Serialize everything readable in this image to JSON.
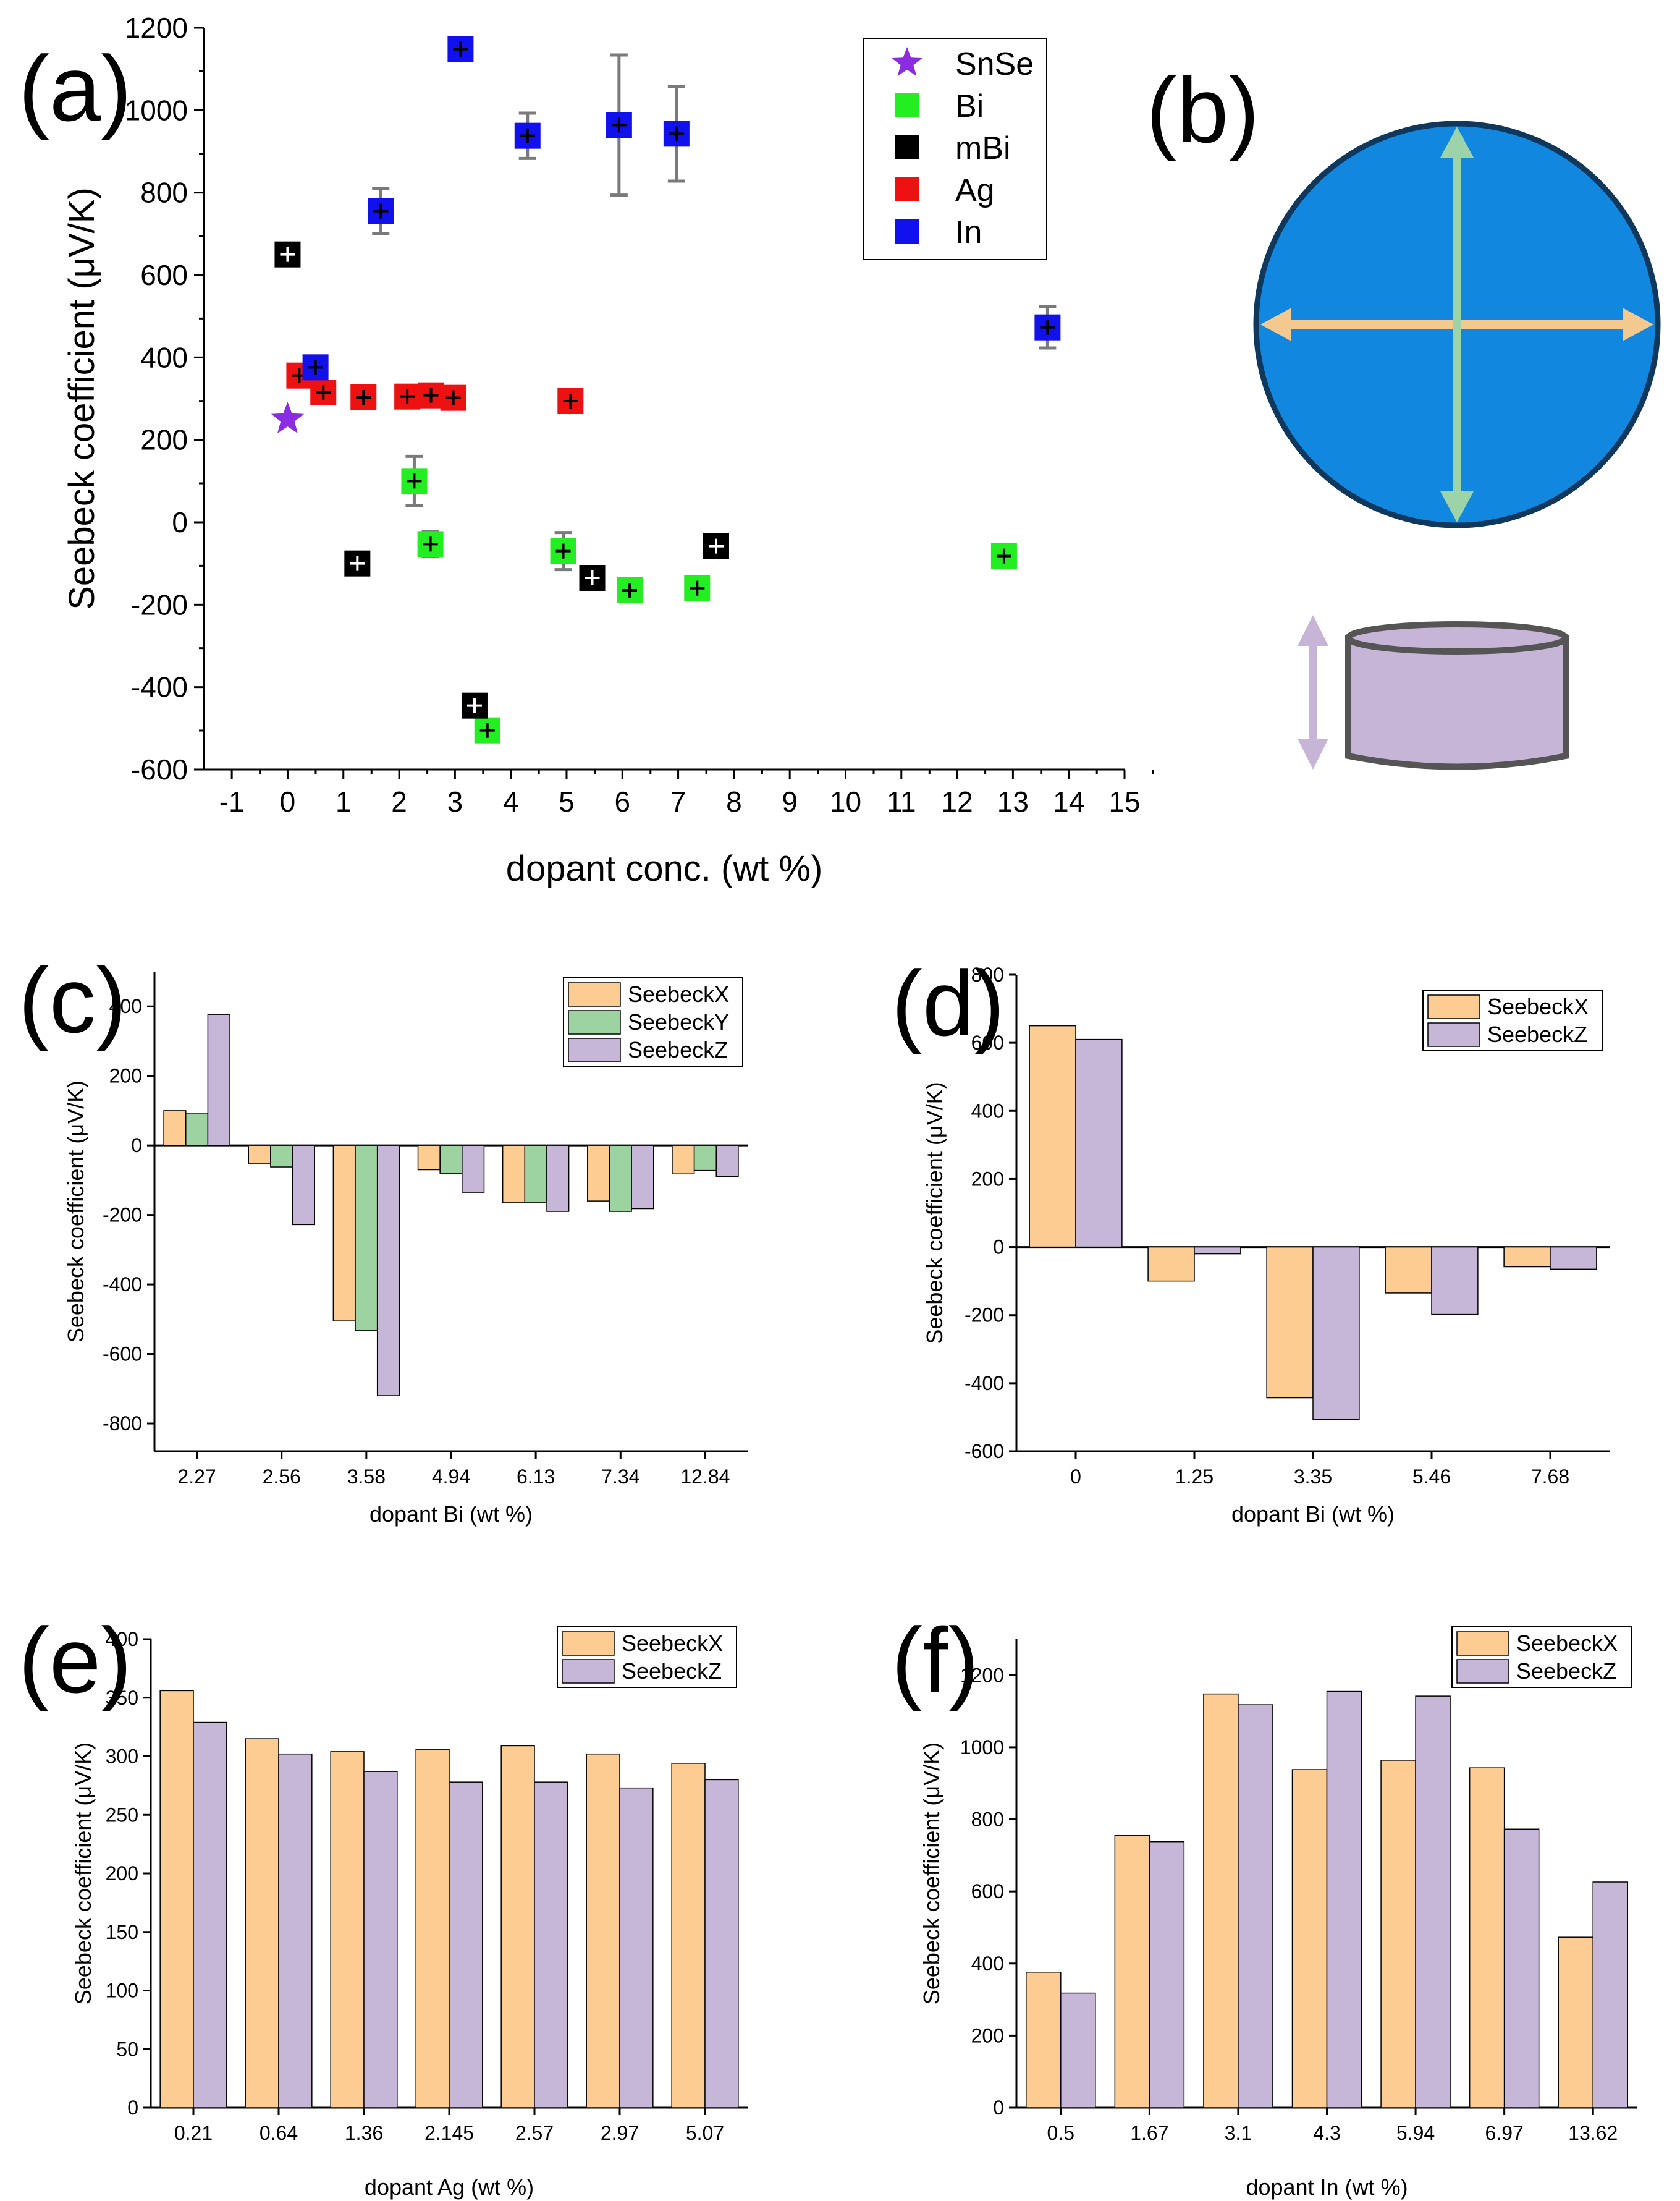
{
  "panel_labels": {
    "a": "(a)",
    "b": "(b)",
    "c": "(c)",
    "d": "(d)",
    "e": "(e)",
    "f": "(f)"
  },
  "colors": {
    "SnSe": "#8b2be2",
    "Bi": "#22ee22",
    "mBi": "#000000",
    "Ag": "#ee1111",
    "In": "#1111ee",
    "SeebeckX": "#fdcc93",
    "SeebeckY": "#9dd3a0",
    "SeebeckZ": "#c6b6d8",
    "errorbar": "#7a7a7a",
    "disk": "#1187e0",
    "disk_edge": "#10385c",
    "arrow_tan": "#f4c98f",
    "arrow_green": "#9dd3a8",
    "cylinder": "#c7b5d8",
    "cylinder_edge": "#555555"
  },
  "chart_data": [
    {
      "panel": "a",
      "type": "scatter",
      "xlabel": "dopant conc. (wt %)",
      "ylabel": "Seebeck coefficient (μV/K)",
      "xlim": [
        -1.5,
        15
      ],
      "ylim": [
        -600,
        1200
      ],
      "xticks": [
        "-1",
        "0",
        "1",
        "2",
        "3",
        "4",
        "5",
        "6",
        "7",
        "8",
        "9",
        "10",
        "11",
        "12",
        "13",
        "14",
        "15"
      ],
      "yticks": [
        "-600",
        "-400",
        "-200",
        "0",
        "200",
        "400",
        "600",
        "800",
        "1000",
        "1200"
      ],
      "legend_position": "top-right",
      "series": [
        {
          "name": "SnSe",
          "marker": "star",
          "points": [
            {
              "x": 0,
              "y": 250,
              "err": 0
            }
          ]
        },
        {
          "name": "Bi",
          "marker": "square",
          "points": [
            {
              "x": 2.27,
              "y": 100,
              "err": 60
            },
            {
              "x": 2.56,
              "y": -53,
              "err": 30
            },
            {
              "x": 3.58,
              "y": -505,
              "err": 15
            },
            {
              "x": 4.94,
              "y": -70,
              "err": 45
            },
            {
              "x": 6.13,
              "y": -165,
              "err": 15
            },
            {
              "x": 7.34,
              "y": -160,
              "err": 20
            },
            {
              "x": 12.84,
              "y": -82,
              "err": 20
            }
          ]
        },
        {
          "name": "mBi",
          "marker": "square",
          "points": [
            {
              "x": 0,
              "y": 650,
              "err": 20
            },
            {
              "x": 1.25,
              "y": -100,
              "err": 20
            },
            {
              "x": 3.35,
              "y": -445,
              "err": 15
            },
            {
              "x": 5.46,
              "y": -135,
              "err": 15
            },
            {
              "x": 7.68,
              "y": -58,
              "err": 15
            }
          ]
        },
        {
          "name": "Ag",
          "marker": "square",
          "points": [
            {
              "x": 0.21,
              "y": 356,
              "err": 15
            },
            {
              "x": 0.64,
              "y": 315,
              "err": 15
            },
            {
              "x": 1.36,
              "y": 303,
              "err": 15
            },
            {
              "x": 2.145,
              "y": 305,
              "err": 15
            },
            {
              "x": 2.57,
              "y": 308,
              "err": 15
            },
            {
              "x": 2.97,
              "y": 302,
              "err": 15
            },
            {
              "x": 5.07,
              "y": 294,
              "err": 15
            }
          ]
        },
        {
          "name": "In",
          "marker": "square",
          "points": [
            {
              "x": 0.5,
              "y": 376,
              "err": 25
            },
            {
              "x": 1.67,
              "y": 755,
              "err": 55
            },
            {
              "x": 3.1,
              "y": 1148,
              "err": 25
            },
            {
              "x": 4.3,
              "y": 938,
              "err": 55
            },
            {
              "x": 5.94,
              "y": 964,
              "err": 170
            },
            {
              "x": 6.97,
              "y": 943,
              "err": 115
            },
            {
              "x": 13.62,
              "y": 473,
              "err": 50
            }
          ]
        }
      ]
    },
    {
      "panel": "c",
      "type": "bar",
      "xlabel": "dopant Bi (wt %)",
      "ylabel": "Seebeck coefficient (μV/K)",
      "ylim": [
        -880,
        500
      ],
      "yticks": [
        "-800",
        "-600",
        "-400",
        "-200",
        "0",
        "200",
        "400"
      ],
      "categories": [
        "2.27",
        "2.56",
        "3.58",
        "4.94",
        "6.13",
        "7.34",
        "12.84"
      ],
      "legend_position": "top-right",
      "series": [
        {
          "name": "SeebeckX",
          "values": [
            100,
            -53,
            -505,
            -70,
            -165,
            -160,
            -82
          ]
        },
        {
          "name": "SeebeckY",
          "values": [
            93,
            -62,
            -533,
            -80,
            -165,
            -190,
            -72
          ]
        },
        {
          "name": "SeebeckZ",
          "values": [
            377,
            -228,
            -720,
            -135,
            -190,
            -182,
            -90
          ]
        }
      ]
    },
    {
      "panel": "d",
      "type": "bar",
      "xlabel": "dopant Bi (wt %)",
      "ylabel": "Seebeck coefficient (μV/K)",
      "ylim": [
        -600,
        800
      ],
      "yticks": [
        "-600",
        "-400",
        "-200",
        "0",
        "200",
        "400",
        "600",
        "800"
      ],
      "categories": [
        "0",
        "1.25",
        "3.35",
        "5.46",
        "7.68"
      ],
      "legend_position": "top-right",
      "series": [
        {
          "name": "SeebeckX",
          "values": [
            650,
            -100,
            -443,
            -135,
            -58
          ]
        },
        {
          "name": "SeebeckZ",
          "values": [
            610,
            -20,
            -507,
            -198,
            -65
          ]
        }
      ]
    },
    {
      "panel": "e",
      "type": "bar",
      "xlabel": "dopant Ag (wt %)",
      "ylabel": "Seebeck coefficient (μV/K)",
      "ylim": [
        0,
        400
      ],
      "yticks": [
        "0",
        "50",
        "100",
        "150",
        "200",
        "250",
        "300",
        "350",
        "400"
      ],
      "categories": [
        "0.21",
        "0.64",
        "1.36",
        "2.145",
        "2.57",
        "2.97",
        "5.07"
      ],
      "legend_position": "top-right",
      "series": [
        {
          "name": "SeebeckX",
          "values": [
            356,
            315,
            304,
            306,
            309,
            302,
            294
          ]
        },
        {
          "name": "SeebeckZ",
          "values": [
            329,
            302,
            287,
            278,
            278,
            273,
            280
          ]
        }
      ]
    },
    {
      "panel": "f",
      "type": "bar",
      "xlabel": "dopant In (wt %)",
      "ylabel": "Seebeck coefficient (μV/K)",
      "ylim": [
        0,
        1300
      ],
      "yticks": [
        "0",
        "200",
        "400",
        "600",
        "800",
        "1000",
        "1200"
      ],
      "categories": [
        "0.5",
        "1.67",
        "3.1",
        "4.3",
        "5.94",
        "6.97",
        "13.62"
      ],
      "legend_position": "top-right",
      "series": [
        {
          "name": "SeebeckX",
          "values": [
            376,
            755,
            1148,
            938,
            964,
            943,
            473
          ]
        },
        {
          "name": "SeebeckZ",
          "values": [
            318,
            738,
            1118,
            1155,
            1142,
            773,
            626
          ]
        }
      ]
    }
  ]
}
